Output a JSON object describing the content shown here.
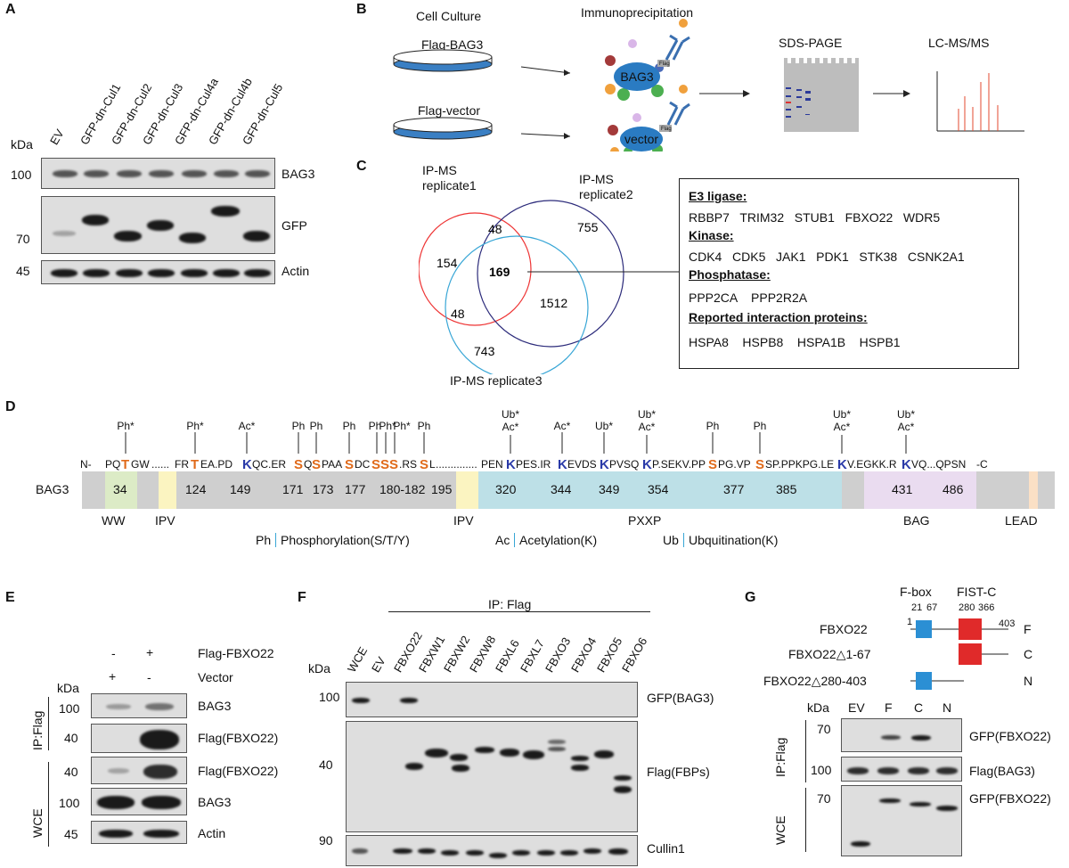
{
  "panels": {
    "A": "A",
    "B": "B",
    "C": "C",
    "D": "D",
    "E": "E",
    "F": "F",
    "G": "G"
  },
  "panelA": {
    "lanes": [
      "EV",
      "GFP-dn-Cul1",
      "GFP-dn-Cul2",
      "GFP-dn-Cul3",
      "GFP-dn-Cul4a",
      "GFP-dn-Cul4b",
      "GFP-dn-Cul5"
    ],
    "kda": "kDa",
    "markers": [
      "100",
      "70",
      "45"
    ],
    "blots": [
      "BAG3",
      "GFP",
      "Actin"
    ]
  },
  "panelB": {
    "cell_culture": "Cell Culture",
    "immunoprecipitation": "Immunoprecipitation",
    "flag_bag3": "Flag-BAG3",
    "flag_vector": "Flag-vector",
    "bag3": "BAG3",
    "vector": "vector",
    "flag": "Flag",
    "sds_page": "SDS-PAGE",
    "lcms": "LC-MS/MS"
  },
  "panelC": {
    "rep1": "IP-MS replicate1",
    "rep2": "IP-MS replicate2",
    "rep3": "IP-MS replicate3",
    "n154": "154",
    "n48a": "48",
    "n755": "755",
    "n169": "169",
    "n48b": "48",
    "n1512": "1512",
    "n743": "743",
    "box": {
      "e3_title": "E3 ligase:",
      "e3": "RBBP7   TRIM32   STUB1   FBXO22   WDR5",
      "kinase_title": "Kinase:",
      "kinase": "CDK4   CDK5   JAK1   PDK1   STK38   CSNK2A1",
      "phos_title": "Phosphatase:",
      "phos": "PPP2CA    PPP2R2A",
      "rep_title": "Reported interaction proteins:",
      "rep": "HSPA8    HSPB8    HSPA1B    HSPB1"
    }
  },
  "panelD": {
    "label": "BAG3",
    "nterm": "N-",
    "cterm": "-C",
    "numbers": [
      "34",
      "124",
      "149",
      "171",
      "173",
      "177",
      "180-182",
      "195",
      "320",
      "344",
      "349",
      "354",
      "377",
      "385",
      "431",
      "486"
    ],
    "domains": [
      "WW",
      "IPV",
      "IPV",
      "PXXP",
      "BAG",
      "LEAD"
    ],
    "legend_ph": "Ph",
    "legend_ph_text": "Phosphorylation(S/T/Y)",
    "legend_ac": "Ac",
    "legend_ac_text": "Acetylation(K)",
    "legend_ub": "Ub",
    "legend_ub_text": "Ubquitination(K)"
  },
  "panelE": {
    "signs_row1": [
      "-",
      "+"
    ],
    "row1_label": "Flag-FBXO22",
    "signs_row2": [
      "+",
      "-"
    ],
    "row2_label": "Vector",
    "kda": "kDa",
    "markers": [
      "100",
      "40",
      "40",
      "100",
      "45"
    ],
    "blots": [
      "BAG3",
      "Flag(FBXO22)",
      "Flag(FBXO22)",
      "BAG3",
      "Actin"
    ],
    "ipflag": "IP:Flag",
    "wce": "WCE"
  },
  "panelF": {
    "ip_header": "IP: Flag",
    "lanes": [
      "WCE",
      "EV",
      "FBXO22",
      "FBXW1",
      "FBXW2",
      "FBXW8",
      "FBXL6",
      "FBXL7",
      "FBXO3",
      "FBXO4",
      "FBXO5",
      "FBXO6"
    ],
    "kda": "kDa",
    "markers": [
      "100",
      "40",
      "90"
    ],
    "blots": [
      "GFP(BAG3)",
      "Flag(FBPs)",
      "Cullin1"
    ]
  },
  "panelG": {
    "fbox": "F-box",
    "fistc": "FIST-C",
    "n1": "1",
    "n21": "21",
    "n67": "67",
    "n280": "280",
    "n366": "366",
    "n403": "403",
    "constructs": [
      "FBXO22",
      "FBXO22△1-67",
      "FBXO22△280-403"
    ],
    "codes": [
      "F",
      "C",
      "N"
    ],
    "kda": "kDa",
    "lanes": [
      "EV",
      "F",
      "C",
      "N"
    ],
    "markers": [
      "70",
      "100",
      "70"
    ],
    "blots": [
      "GFP(FBXO22)",
      "Flag(BAG3)",
      "GFP(FBXO22)"
    ],
    "ipflag": "IP:Flag",
    "wce": "WCE"
  }
}
